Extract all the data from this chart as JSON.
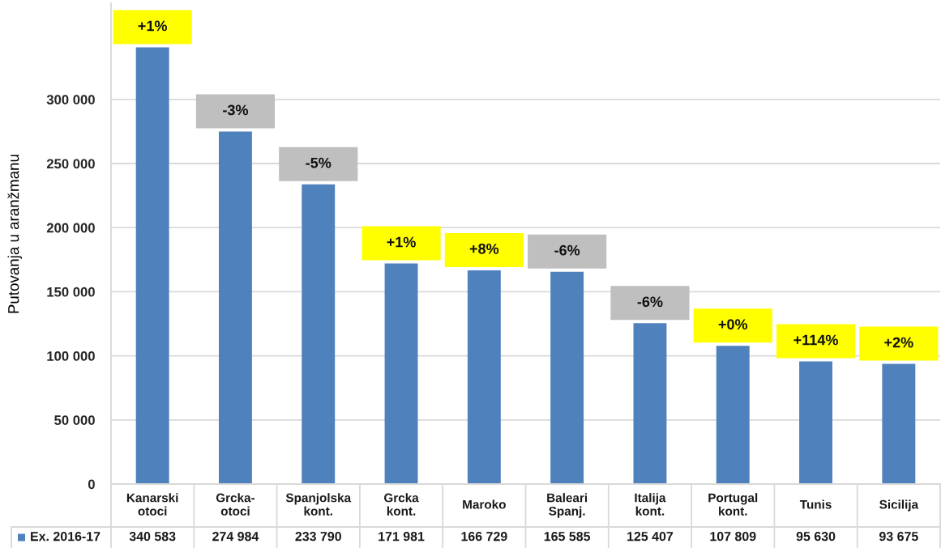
{
  "chart_data": {
    "type": "bar",
    "ylabel": "Putovanja u aranžmanu",
    "categories": [
      "Kanarski\notoci",
      "Grcka-\notoci",
      "Spanjolska\nkont.",
      "Grcka\nkont.",
      "Maroko",
      "Baleari\nSpanj.",
      "Italija\nkont.",
      "Portugal\nkont.",
      "Tunis",
      "Sicilija"
    ],
    "series": [
      {
        "name": "Ex. 2016-17",
        "color": "#4f81bd",
        "values": [
          340583,
          274984,
          233790,
          171981,
          166729,
          165585,
          125407,
          107809,
          95630,
          93675
        ],
        "value_labels": [
          "340 583",
          "274 984",
          "233 790",
          "171 981",
          "166 729",
          "165 585",
          "125 407",
          "107 809",
          "95 630",
          "93 675"
        ]
      }
    ],
    "ylim": [
      0,
      375000
    ],
    "yticks": [
      0,
      {
        "value": 50000,
        "label": "50 000"
      },
      {
        "value": 100000,
        "label": "100 000"
      },
      {
        "value": 150000,
        "label": "150 000"
      },
      {
        "value": 200000,
        "label": "200 000"
      },
      {
        "value": 250000,
        "label": "250 000"
      },
      {
        "value": 300000,
        "label": "300 000"
      }
    ],
    "grid": "y",
    "legend": "bottom",
    "annotations": [
      {
        "text": "+1%",
        "x": "Kanarski\notoci",
        "y": 340583
      },
      {
        "text": "-3%",
        "x": "Grcka-\notoci",
        "y": 274984
      },
      {
        "text": "-5%",
        "x": "Spanjolska\nkont.",
        "y": 233790
      },
      {
        "text": "+1%",
        "x": "Grcka\nkont.",
        "y": 171981
      },
      {
        "text": "+8%",
        "x": "Maroko",
        "y": 166729
      },
      {
        "text": "-6%",
        "x": "Baleari\nSpanj.",
        "y": 165585
      },
      {
        "text": "-6%",
        "x": "Italija\nkont.",
        "y": 125407
      },
      {
        "text": "+0%",
        "x": "Portugal\nkont.",
        "y": 107809
      },
      {
        "text": "+114%",
        "x": "Tunis",
        "y": 95630
      },
      {
        "text": "+2%",
        "x": "Sicilija",
        "y": 93675
      }
    ]
  }
}
